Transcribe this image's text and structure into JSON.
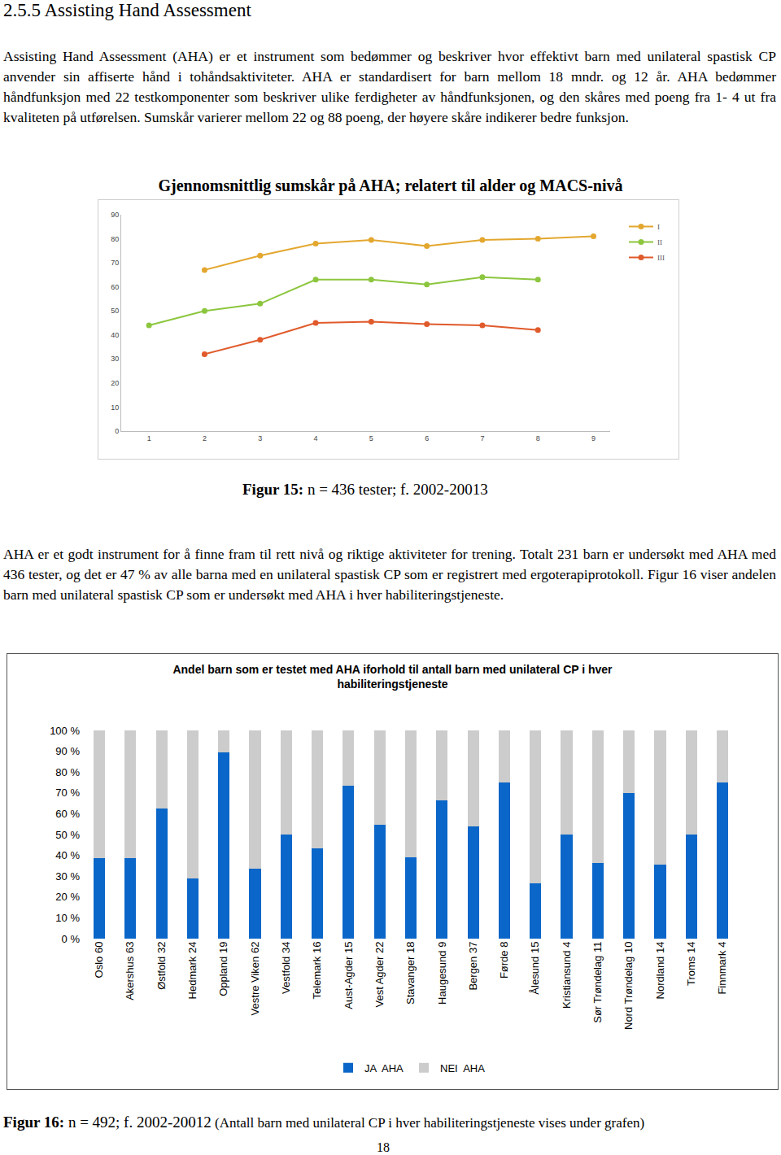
{
  "heading": "2.5.5 Assisting Hand Assessment",
  "paragraphs": [
    "Assisting Hand Assessment (AHA) er et instrument som bedømmer og beskriver hvor effektivt barn med unilateral spastisk CP anvender sin affiserte hånd i tohåndsaktiviteter. AHA er standardisert for barn mellom 18 mndr. og 12 år. AHA bedømmer håndfunksjon med 22 testkomponenter som beskriver ulike ferdigheter av håndfunksjonen, og den skåres med poeng fra 1- 4 ut fra kvaliteten på utførelsen. Sumskår varierer mellom 22 og 88 poeng, der høyere skåre indikerer bedre funksjon.",
    "AHA er et godt instrument for å finne fram til rett nivå og riktige aktiviteter for trening. Totalt 231 barn er undersøkt med AHA med 436 tester, og det er 47 % av alle barna med en unilateral spastisk CP som er registrert med ergoterapiprotokoll. Figur 16 viser andelen barn med unilateral spastisk CP som er undersøkt med AHA i hver habiliteringstjeneste."
  ],
  "chart_data": [
    {
      "type": "line",
      "title": "Gjennomsnittlig sumskår på AHA; relatert til alder og MACS-nivå",
      "x": [
        1,
        2,
        3,
        4,
        5,
        6,
        7,
        8,
        9
      ],
      "series": [
        {
          "name": "I",
          "color": "#e3a72f",
          "marker": "circle",
          "values": [
            null,
            67,
            73,
            78,
            79.5,
            77,
            79.5,
            80,
            81
          ]
        },
        {
          "name": "II",
          "color": "#8cc63e",
          "marker": "circle",
          "values": [
            44,
            50,
            53,
            63,
            63,
            61,
            64,
            63,
            null
          ]
        },
        {
          "name": "III",
          "color": "#e05a2b",
          "marker": "circle",
          "values": [
            null,
            32,
            38,
            45,
            45.5,
            44.5,
            44,
            42,
            null
          ]
        }
      ],
      "xlim": [
        0.5,
        9.3
      ],
      "xticks": [
        1,
        2,
        3,
        4,
        5,
        6,
        7,
        8,
        9
      ],
      "ylim": [
        0,
        90
      ],
      "yticks": [
        0,
        10,
        20,
        30,
        40,
        50,
        60,
        70,
        80,
        90
      ],
      "grid": false,
      "legend": "top-right"
    },
    {
      "type": "bar",
      "title": "Andel barn som er testet med AHA iforhold til antall barn med unilateral CP i hver habiliteringstjeneste",
      "categories": [
        "Oslo 60",
        "Akershus 63",
        "Østfold 32",
        "Hedmark 24",
        "Oppland 19",
        "Vestre Viken 62",
        "Vestfold 34",
        "Telemark 16",
        "Aust-Agder 15",
        "Vest Agder 22",
        "Stavanger 18",
        "Haugesund 9",
        "Bergen 37",
        "Førde 8",
        "Ålesund 15",
        "Kristiansund 4",
        "Sør Trøndelag 11",
        "Nord Trøndelag 10",
        "Nordland 14",
        "Troms 14",
        "Finnmark 4"
      ],
      "series": [
        {
          "name": "JA  AHA",
          "color": "#0a66c8",
          "values": [
            38.5,
            38.5,
            62.5,
            29,
            89.5,
            33.5,
            50,
            43.5,
            73.5,
            54.5,
            39,
            66.5,
            54,
            75,
            26.5,
            50,
            36.5,
            70,
            35.5,
            50,
            75
          ]
        },
        {
          "name": "NEI  AHA",
          "color": "#cccccc",
          "values": [
            61.5,
            61.5,
            37.5,
            71,
            10.5,
            66.5,
            50,
            56.5,
            26.5,
            45.5,
            61,
            33.5,
            46,
            25,
            73.5,
            50,
            63.5,
            30,
            64.5,
            50,
            25
          ]
        }
      ],
      "stacked": true,
      "ylim": [
        0,
        100
      ],
      "yticks": [
        {
          "value": 0,
          "label": "0 %"
        },
        {
          "value": 10,
          "label": "10 %"
        },
        {
          "value": 20,
          "label": "20 %"
        },
        {
          "value": 30,
          "label": "30 %"
        },
        {
          "value": 40,
          "label": "40 %"
        },
        {
          "value": 50,
          "label": "50 %"
        },
        {
          "value": 60,
          "label": "60 %"
        },
        {
          "value": 70,
          "label": "70 %"
        },
        {
          "value": 80,
          "label": "80 %"
        },
        {
          "value": 90,
          "label": "90 %"
        },
        {
          "value": 100,
          "label": "100 %"
        }
      ],
      "grid": false,
      "legend": "bottom"
    }
  ],
  "captions": [
    {
      "label": "Figur 15:",
      "text": "n = 436 tester; f. 2002-20013"
    },
    {
      "label": "Figur 16:",
      "text": "n = 492; f. 2002-20012",
      "note": "(Antall barn med unilateral CP i hver habiliteringstjeneste vises under grafen)"
    }
  ],
  "page_number": "18"
}
